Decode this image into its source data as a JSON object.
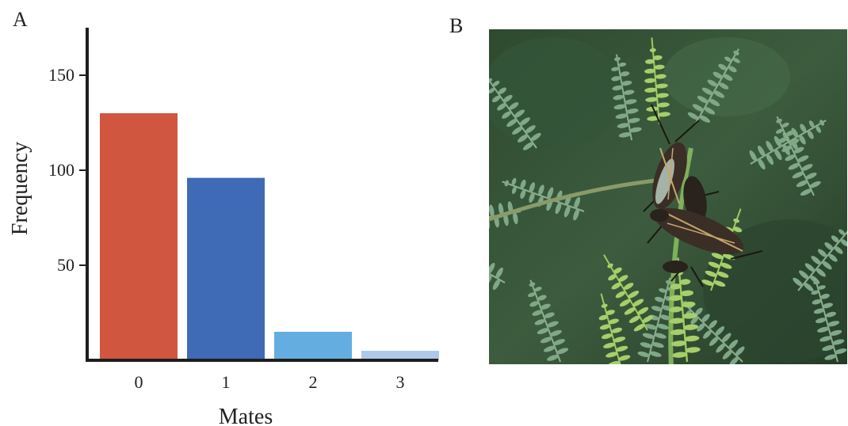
{
  "panels": {
    "a_label": "A",
    "b_label": "B"
  },
  "chart_data": {
    "type": "bar",
    "xlabel": "Mates",
    "ylabel": "Frequency",
    "categories": [
      "0",
      "1",
      "2",
      "3"
    ],
    "values": [
      130,
      96,
      15,
      5
    ],
    "colors": [
      "#d15640",
      "#3f6ab5",
      "#63ade1",
      "#adc8ea"
    ],
    "yticks": [
      50,
      100,
      150
    ],
    "ylim": [
      0,
      175
    ],
    "grid": false,
    "legend": "none"
  },
  "photo": {
    "subject": "photograph of mating insects on green fern-like leaves",
    "colors": {
      "foliage_dark": "#243a24",
      "foliage_mid": "#6f9a78",
      "leaf_light": "#a6cf6b",
      "insect": "#3a2e26",
      "wing_stripe": "#c8a66a"
    }
  }
}
